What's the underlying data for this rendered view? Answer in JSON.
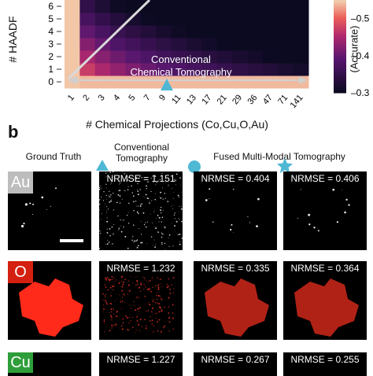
{
  "panel_b_label": "b",
  "chart_data": {
    "type": "heatmap",
    "xlabel": "# Chemical Projections (Co,Cu,O,Au)",
    "ylabel": "# HAADF",
    "x_ticks": [
      "1",
      "2",
      "3",
      "4",
      "5",
      "7",
      "9",
      "11",
      "13",
      "17",
      "21",
      "29",
      "36",
      "47",
      "71",
      "141"
    ],
    "y_ticks": [
      "0",
      "1",
      "2",
      "3",
      "4",
      "5",
      "6"
    ],
    "colorbar_label": "(Accurate)",
    "colorbar_ticks": [
      "0.5",
      "0.4",
      "0.3"
    ],
    "colorbar_range": [
      0.3,
      0.55
    ],
    "annotation": [
      "Conventional",
      "Chemical Tomography"
    ]
  },
  "columns": {
    "ground_truth": "Ground Truth",
    "conventional": [
      "Conventional",
      "Tomography"
    ],
    "fused": "Fused Multi-Modal Tomography"
  },
  "rows": [
    {
      "element": "Au",
      "color": "#bdbdbd",
      "nrmse": [
        "NRMSE = 1.151",
        "NRMSE = 0.404",
        "NRMSE = 0.406"
      ]
    },
    {
      "element": "O",
      "color": "#d32010",
      "nrmse": [
        "NRMSE = 1.232",
        "NRMSE = 0.335",
        "NRMSE = 0.364"
      ]
    },
    {
      "element": "Cu",
      "color": "#2e9e3a",
      "nrmse": [
        "NRMSE = 1.227",
        "NRMSE = 0.267",
        "NRMSE = 0.255"
      ]
    }
  ],
  "colors": {
    "marker": "#4fb8d4",
    "heat_low": "#0b0a21",
    "heat_high": "#f2d9b6"
  }
}
